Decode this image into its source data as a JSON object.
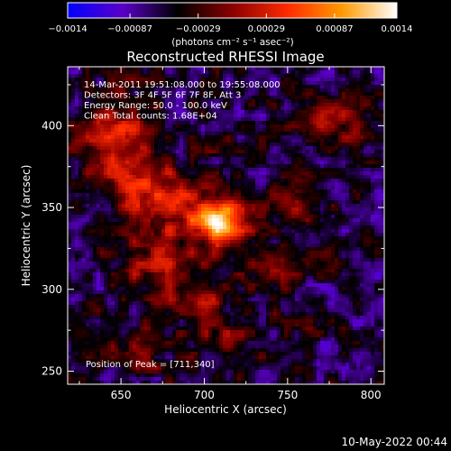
{
  "chart_data": {
    "type": "heatmap",
    "title": "Reconstructed RHESSI Image",
    "xlabel": "Heliocentric X (arcsec)",
    "ylabel": "Heliocentric Y (arcsec)",
    "xlim": [
      618,
      808
    ],
    "ylim": [
      242,
      436
    ],
    "x_ticks": [
      650,
      700,
      750,
      800
    ],
    "x_tick_labels": [
      "650",
      "700",
      "750",
      "800"
    ],
    "y_ticks": [
      250,
      300,
      350,
      400
    ],
    "y_tick_labels": [
      "250",
      "300",
      "350",
      "400"
    ],
    "colorbar": {
      "range": [
        -0.0014,
        0.0014
      ],
      "ticks": [
        -0.0014,
        -0.00087,
        -0.00029,
        0.00029,
        0.00087,
        0.0014
      ],
      "tick_labels": [
        "−0.0014",
        "−0.00087",
        "−0.00029",
        "0.00029",
        "0.00087",
        "0.0014"
      ],
      "unit_label": "(photons cm⁻² s⁻¹ asec⁻²)",
      "colors": [
        "#0000ff",
        "#5a00c8",
        "#000000",
        "#8a0000",
        "#ff2a00",
        "#ff9a00",
        "#ffffff"
      ]
    },
    "annotations": [
      "14-Mar-2011 19:51:08.000 to 19:55:08.000",
      "Detectors: 3F 4F 5F 6F 7F 8F, Att 3",
      "Energy Range: 50.0 - 100.0 keV",
      "Clean    Total counts: 1.68E+04"
    ],
    "peak_label": "Position of Peak = [711,340]",
    "peak": [
      711,
      340
    ],
    "sources": [
      {
        "x": 711,
        "y": 340,
        "sx": 9,
        "sy": 9,
        "amp": 0.00135
      },
      {
        "x": 690,
        "y": 345,
        "sx": 20,
        "sy": 16,
        "amp": 0.00075
      },
      {
        "x": 648,
        "y": 392,
        "sx": 16,
        "sy": 18,
        "amp": 0.00085
      },
      {
        "x": 662,
        "y": 362,
        "sx": 14,
        "sy": 12,
        "amp": 0.0006
      },
      {
        "x": 740,
        "y": 314,
        "sx": 16,
        "sy": 10,
        "amp": 0.0006
      },
      {
        "x": 668,
        "y": 316,
        "sx": 15,
        "sy": 11,
        "amp": 0.0005
      },
      {
        "x": 692,
        "y": 295,
        "sx": 16,
        "sy": 10,
        "amp": 0.0005
      },
      {
        "x": 712,
        "y": 272,
        "sx": 15,
        "sy": 10,
        "amp": 0.00045
      },
      {
        "x": 780,
        "y": 405,
        "sx": 14,
        "sy": 10,
        "amp": 0.0006
      },
      {
        "x": 660,
        "y": 262,
        "sx": 14,
        "sy": 9,
        "amp": 0.00035
      },
      {
        "x": 752,
        "y": 352,
        "sx": 13,
        "sy": 10,
        "amp": 0.00035
      }
    ]
  },
  "footer": {
    "timestamp": "10-May-2022 00:44"
  }
}
